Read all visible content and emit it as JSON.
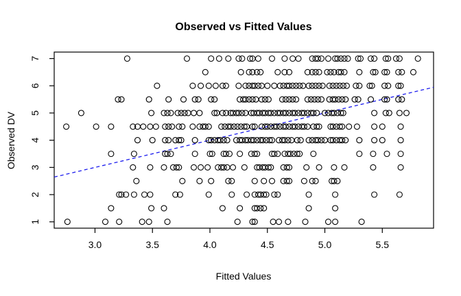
{
  "chart_data": {
    "type": "scatter",
    "title": "Observed vs Fitted Values",
    "xlabel": "Fitted Values",
    "ylabel": "Observed DV",
    "xlim": [
      2.645,
      5.946
    ],
    "ylim": [
      0.767,
      7.239
    ],
    "grid": false,
    "xticks": [
      3.0,
      3.5,
      4.0,
      4.5,
      5.0,
      5.5
    ],
    "xtick_labels": [
      "3.0",
      "3.5",
      "4.0",
      "4.5",
      "5.0",
      "5.5"
    ],
    "yticks": [
      1,
      2,
      3,
      4,
      5,
      6,
      7
    ],
    "ytick_labels": [
      "1",
      "2",
      "3",
      "4",
      "5",
      "6",
      "7"
    ],
    "point_style": {
      "shape": "open-circle",
      "stroke_color": "#000000",
      "radius": 4
    },
    "reference_line": {
      "type": "identity",
      "intercept": 0,
      "slope": 1,
      "color": "#1a1aee",
      "style": "dashed",
      "x_start": 2.645,
      "x_end": 5.946
    },
    "series": [
      {
        "name": "observations",
        "rows": [
          {
            "y": 7.0,
            "xs": [
              3.28,
              3.8,
              4.01,
              4.08,
              4.16,
              4.25,
              4.28,
              4.35,
              4.37,
              4.42,
              4.54,
              4.65,
              4.72,
              4.77,
              4.89,
              4.92,
              4.94,
              4.97,
              5.03,
              5.09,
              5.11,
              5.14,
              5.17,
              5.2,
              5.29,
              5.31,
              5.4,
              5.43,
              5.53,
              5.55,
              5.62,
              5.65,
              5.81
            ]
          },
          {
            "y": 6.5,
            "xs": [
              3.96,
              4.27,
              4.34,
              4.37,
              4.41,
              4.44,
              4.59,
              4.65,
              4.69,
              4.85,
              4.89,
              4.92,
              4.95,
              5.02,
              5.05,
              5.08,
              5.12,
              5.14,
              5.17,
              5.3,
              5.42,
              5.44,
              5.52,
              5.54,
              5.64,
              5.67,
              5.77
            ]
          },
          {
            "y": 6.0,
            "xs": [
              3.54,
              3.85,
              3.92,
              3.99,
              4.05,
              4.11,
              4.14,
              4.25,
              4.31,
              4.34,
              4.37,
              4.39,
              4.42,
              4.45,
              4.5,
              4.56,
              4.61,
              4.64,
              4.67,
              4.69,
              4.72,
              4.75,
              4.78,
              4.81,
              4.86,
              4.89,
              4.92,
              4.95,
              4.98,
              5.04,
              5.07,
              5.1,
              5.13,
              5.16,
              5.19,
              5.27,
              5.3,
              5.39,
              5.41,
              5.52,
              5.55,
              5.64,
              5.66
            ]
          },
          {
            "y": 5.5,
            "xs": [
              3.2,
              3.23,
              3.47,
              3.64,
              3.77,
              3.87,
              3.9,
              4.01,
              4.04,
              4.26,
              4.29,
              4.31,
              4.34,
              4.37,
              4.4,
              4.45,
              4.48,
              4.51,
              4.63,
              4.66,
              4.69,
              4.72,
              4.75,
              4.85,
              4.88,
              4.91,
              4.94,
              4.97,
              5.04,
              5.07,
              5.09,
              5.12,
              5.15,
              5.18,
              5.26,
              5.29,
              5.4,
              5.52,
              5.54,
              5.64,
              5.67
            ]
          },
          {
            "y": 5.0,
            "xs": [
              2.88,
              3.49,
              3.6,
              3.63,
              3.66,
              3.72,
              3.75,
              3.78,
              3.81,
              3.86,
              3.91,
              4.04,
              4.06,
              4.11,
              4.14,
              4.18,
              4.2,
              4.23,
              4.25,
              4.28,
              4.31,
              4.36,
              4.38,
              4.41,
              4.43,
              4.46,
              4.48,
              4.51,
              4.53,
              4.56,
              4.59,
              4.61,
              4.64,
              4.66,
              4.69,
              4.72,
              4.74,
              4.77,
              4.8,
              4.82,
              4.85,
              4.88,
              4.9,
              4.93,
              5.0,
              5.03,
              5.06,
              5.08,
              5.11,
              5.14,
              5.16,
              5.43,
              5.53,
              5.56,
              5.65,
              5.71
            ]
          },
          {
            "y": 4.5,
            "xs": [
              2.75,
              3.01,
              3.14,
              3.33,
              3.37,
              3.42,
              3.48,
              3.53,
              3.61,
              3.64,
              3.67,
              3.73,
              3.76,
              3.85,
              3.91,
              3.94,
              3.96,
              3.99,
              4.1,
              4.13,
              4.16,
              4.18,
              4.21,
              4.24,
              4.27,
              4.3,
              4.32,
              4.37,
              4.39,
              4.45,
              4.48,
              4.5,
              4.53,
              4.56,
              4.58,
              4.61,
              4.64,
              4.66,
              4.69,
              4.72,
              4.74,
              4.77,
              4.8,
              4.82,
              4.85,
              4.9,
              4.93,
              4.95,
              5.05,
              5.07,
              5.1,
              5.13,
              5.15,
              5.21,
              5.28,
              5.43,
              5.5,
              5.66
            ]
          },
          {
            "y": 4.0,
            "xs": [
              3.37,
              3.5,
              3.61,
              3.64,
              3.7,
              3.73,
              3.75,
              3.87,
              3.99,
              4.01,
              4.04,
              4.07,
              4.09,
              4.12,
              4.15,
              4.23,
              4.26,
              4.28,
              4.31,
              4.33,
              4.36,
              4.38,
              4.41,
              4.44,
              4.46,
              4.49,
              4.52,
              4.54,
              4.6,
              4.63,
              4.65,
              4.68,
              4.71,
              4.76,
              4.79,
              4.86,
              4.89,
              4.92,
              4.94,
              4.97,
              5.0,
              5.05,
              5.07,
              5.1,
              5.13,
              5.15,
              5.18,
              5.3,
              5.43,
              5.5,
              5.66
            ]
          },
          {
            "y": 3.5,
            "xs": [
              3.14,
              3.34,
              3.61,
              3.63,
              3.66,
              3.87,
              4.0,
              4.02,
              4.12,
              4.14,
              4.17,
              4.26,
              4.36,
              4.39,
              4.41,
              4.54,
              4.56,
              4.59,
              4.65,
              4.68,
              4.7,
              4.73,
              4.76,
              4.78,
              4.9,
              5.3,
              5.42,
              5.54,
              5.66
            ]
          },
          {
            "y": 3.0,
            "xs": [
              3.33,
              3.48,
              3.6,
              3.68,
              3.71,
              3.73,
              3.86,
              3.92,
              3.98,
              4.07,
              4.1,
              4.12,
              4.15,
              4.2,
              4.3,
              4.41,
              4.43,
              4.46,
              4.48,
              4.51,
              4.53,
              4.64,
              4.67,
              4.69,
              4.84,
              4.95,
              5.08,
              5.17,
              5.42,
              5.66
            ]
          },
          {
            "y": 2.5,
            "xs": [
              3.36,
              3.76,
              3.91,
              4.01,
              4.16,
              4.19,
              4.39,
              4.47,
              4.54,
              4.64,
              4.67,
              4.69,
              4.82,
              4.89,
              4.92,
              5.06,
              5.08,
              5.11
            ]
          },
          {
            "y": 2.0,
            "xs": [
              3.21,
              3.23,
              3.27,
              3.34,
              3.43,
              3.48,
              3.7,
              3.74,
              3.99,
              4.19,
              4.32,
              4.39,
              4.42,
              4.44,
              4.47,
              4.49,
              4.56,
              4.59,
              4.86,
              5.09,
              5.43,
              5.65
            ]
          },
          {
            "y": 1.5,
            "xs": [
              3.14,
              3.49,
              3.6,
              4.11,
              4.26,
              4.39,
              4.41,
              4.44,
              4.47,
              4.86,
              5.09
            ]
          },
          {
            "y": 1.0,
            "xs": [
              2.76,
              3.09,
              3.21,
              3.41,
              3.47,
              3.63,
              4.24,
              4.37,
              4.39,
              4.55,
              4.6,
              4.68,
              4.83,
              5.03,
              5.09,
              5.32
            ]
          }
        ]
      }
    ]
  }
}
